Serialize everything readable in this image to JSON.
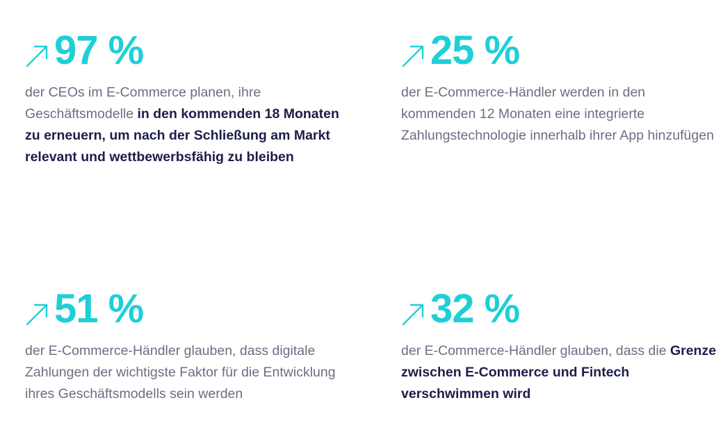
{
  "colors": {
    "accent": "#1fcfd6",
    "body_text": "#6b6e82",
    "emphasis_text": "#1c1e4a"
  },
  "stats": [
    {
      "icon": "arrow-up-right-icon",
      "value": "97 %",
      "text_plain_1": "der CEOs im E-Commerce planen, ihre Geschäftsmodelle ",
      "text_bold": "in den kommenden 18 Monaten zu  erneuern, um nach der Schließung am Markt relevant und wettbewerbsfähig zu bleiben",
      "text_plain_2": ""
    },
    {
      "icon": "arrow-up-right-icon",
      "value": "25 %",
      "text_plain_1": "der E-Commerce-Händler werden in den kommenden 12 Monaten eine  integrierte Zahlungstechnologie innerhalb ihrer App hinzufügen",
      "text_bold": "",
      "text_plain_2": ""
    },
    {
      "icon": "arrow-up-right-icon",
      "value": "51 %",
      "text_plain_1": "der E-Commerce-Händler glauben, dass digitale Zahlungen der wichtigste Faktor für die Entwicklung ihres Geschäftsmodells sein werden",
      "text_bold": "",
      "text_plain_2": ""
    },
    {
      "icon": "arrow-up-right-icon",
      "value": "32 %",
      "text_plain_1": "der E-Commerce-Händler glauben, dass die ",
      "text_bold": "Grenze zwischen E-Commerce und Fintech verschwimmen wird",
      "text_plain_2": ""
    }
  ]
}
